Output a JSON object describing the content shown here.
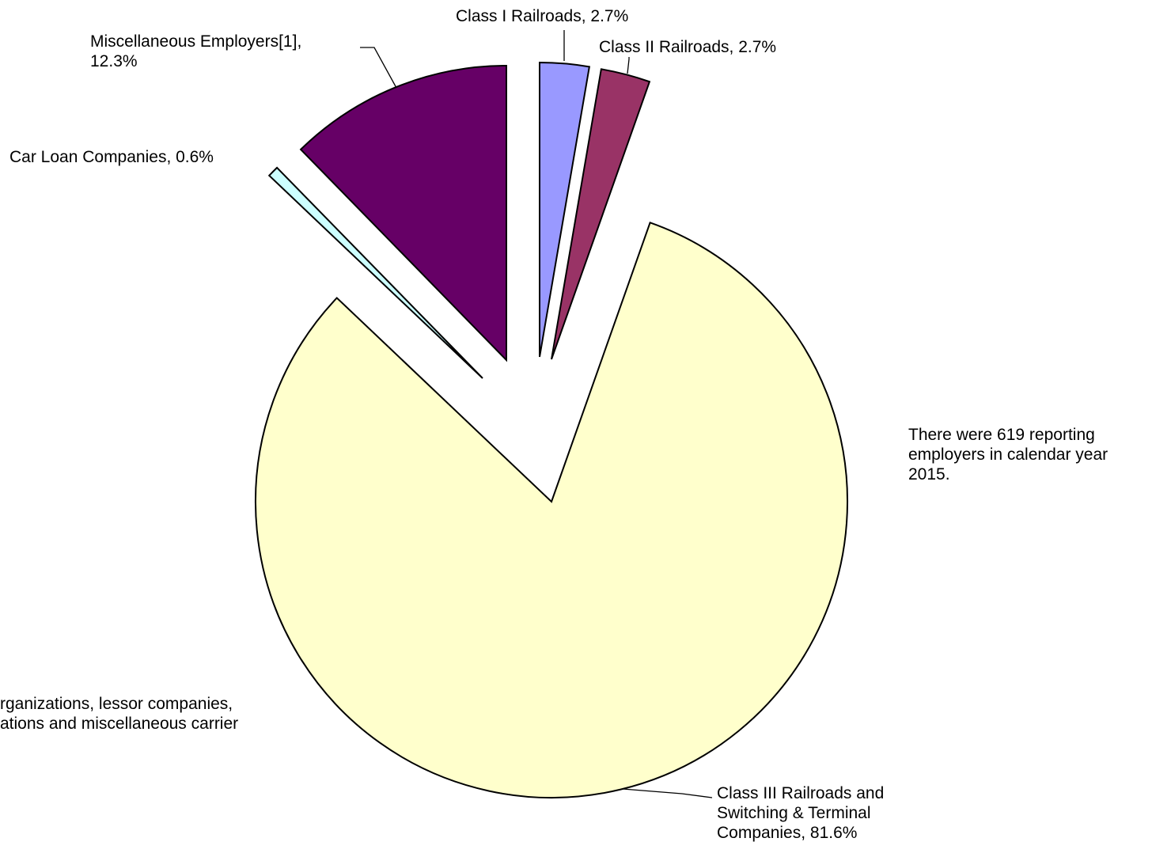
{
  "chart_data": {
    "type": "pie",
    "title": "",
    "slices": [
      {
        "name": "Class I Railroads",
        "value": 2.7,
        "label": "Class I Railroads, 2.7%",
        "color": "#9999FF"
      },
      {
        "name": "Class II Railroads",
        "value": 2.7,
        "label": "Class II Railroads, 2.7%",
        "color": "#993366"
      },
      {
        "name": "Class III Railroads and Switching & Terminal Companies",
        "value": 81.6,
        "label_lines": [
          "Class III Railroads and",
          "Switching & Terminal",
          "Companies, 81.6%"
        ],
        "color": "#FFFFCC"
      },
      {
        "name": "Car Loan Companies",
        "value": 0.6,
        "label": "Car Loan Companies, 0.6%",
        "color": "#CCFFFF"
      },
      {
        "name": "Miscellaneous Employers[1]",
        "value": 12.3,
        "label_lines": [
          "Miscellaneous Employers[1],",
          "12.3%"
        ],
        "color": "#660066"
      }
    ],
    "annotation": [
      "There were 619 reporting",
      "employers in calendar year",
      "2015."
    ],
    "footnote": [
      "rganizations, lessor companies,",
      "ations and miscellaneous carrier"
    ],
    "legend": "none"
  }
}
